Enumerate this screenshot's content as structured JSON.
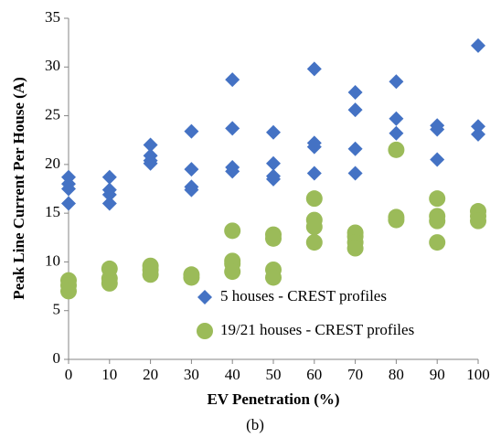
{
  "chart_data": {
    "type": "scatter",
    "x_label": "EV Penetration (%)",
    "y_label": "Peak Line Current Per House (A)",
    "caption": "(b)",
    "xlim": [
      0,
      100
    ],
    "xticks": [
      0,
      10,
      20,
      30,
      40,
      50,
      60,
      70,
      80,
      90,
      100
    ],
    "ylim": [
      0,
      35
    ],
    "yticks": [
      0,
      5,
      10,
      15,
      20,
      25,
      30,
      35
    ],
    "grid": false,
    "series": [
      {
        "name": "5 houses - CREST profiles",
        "color": "#4472c4",
        "marker": "diamond",
        "x": [
          0,
          0,
          0,
          0,
          10,
          10,
          10,
          10,
          20,
          20,
          20,
          20,
          30,
          30,
          30,
          30,
          40,
          40,
          40,
          40,
          50,
          50,
          50,
          50,
          60,
          60,
          60,
          60,
          70,
          70,
          70,
          70,
          80,
          80,
          80,
          90,
          90,
          90,
          100,
          100,
          100
        ],
        "values": [
          18.7,
          18.0,
          17.5,
          16.0,
          18.7,
          17.4,
          16.9,
          16.0,
          22.0,
          20.9,
          20.4,
          20.1,
          23.4,
          19.5,
          17.7,
          17.4,
          28.7,
          23.7,
          19.7,
          19.3,
          23.3,
          20.1,
          18.8,
          18.5,
          29.8,
          22.2,
          21.8,
          19.1,
          27.4,
          25.6,
          21.6,
          19.1,
          28.5,
          24.7,
          23.2,
          24.0,
          23.6,
          20.5,
          32.2,
          23.9,
          23.1
        ]
      },
      {
        "name": "19/21 houses - CREST profiles",
        "color": "#9bbb59",
        "marker": "circle",
        "x": [
          0,
          0,
          0,
          10,
          10,
          10,
          20,
          20,
          20,
          30,
          30,
          40,
          40,
          40,
          40,
          50,
          50,
          50,
          50,
          60,
          60,
          60,
          60,
          70,
          70,
          70,
          70,
          80,
          80,
          80,
          90,
          90,
          90,
          90,
          100,
          100,
          100
        ],
        "values": [
          8.1,
          7.6,
          7.0,
          9.3,
          8.3,
          7.8,
          9.6,
          9.2,
          8.7,
          8.7,
          8.4,
          13.2,
          10.1,
          9.8,
          9.0,
          12.8,
          12.4,
          9.2,
          8.4,
          16.5,
          14.3,
          13.6,
          12.0,
          13.0,
          12.6,
          12.0,
          11.4,
          21.5,
          14.6,
          14.3,
          16.5,
          14.7,
          14.2,
          12.0,
          15.2,
          14.7,
          14.2
        ]
      }
    ]
  }
}
